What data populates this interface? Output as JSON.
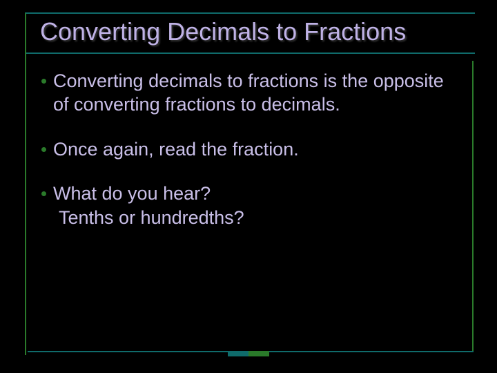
{
  "colors": {
    "background": "#000000",
    "title_color": "#bfb2e6",
    "body_color": "#c9bfe8",
    "border_teal": "#0f6b6b",
    "border_green": "#2a7a2a",
    "bullet_dot": "#2a7a2a",
    "tick_teal": "#0f6b6b",
    "tick_green": "#2a7a2a"
  },
  "title": "Converting Decimals to Fractions",
  "bullets": [
    {
      "text": "Converting decimals to fractions is the opposite of converting fractions to decimals."
    },
    {
      "text": "Once again, read the fraction."
    },
    {
      "text": "What do you hear?",
      "sub": "Tenths or hundredths?"
    }
  ],
  "typography": {
    "title_fontsize": 36,
    "body_fontsize": 27,
    "font_family": "Arial"
  }
}
